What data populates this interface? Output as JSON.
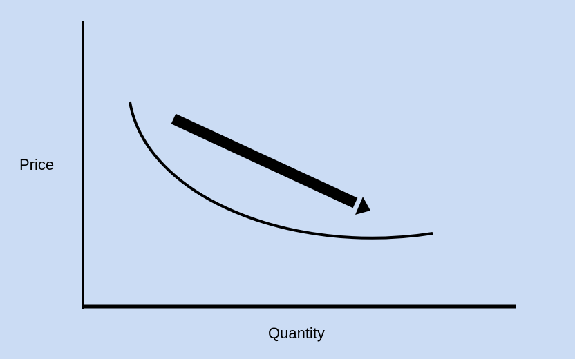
{
  "colors": {
    "background": "#cbdcf4",
    "ink": "#000000"
  },
  "diagram": {
    "y_axis_label": "Price",
    "x_axis_label": "Quantity"
  }
}
